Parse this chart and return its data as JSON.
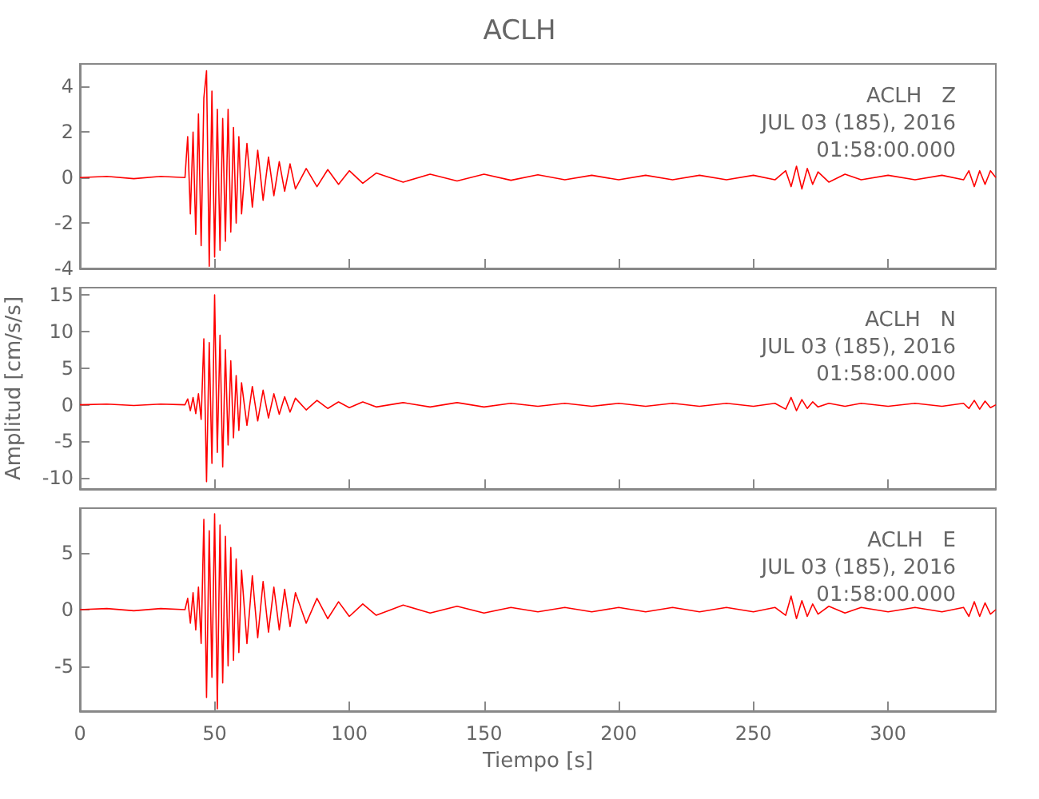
{
  "chart_data": [
    {
      "type": "line",
      "title": "ACLH",
      "color": "#ff0000",
      "xlim": [
        0,
        340
      ],
      "xticks": [
        0,
        50,
        100,
        150,
        200,
        250,
        300
      ],
      "ylim": [
        -4,
        5
      ],
      "yticks": [
        -4,
        -2,
        0,
        2,
        4
      ],
      "tick_labels": "y",
      "grid": false,
      "annotations": [
        "ACLH   Z",
        "JUL 03 (185), 2016",
        "01:58:00.000"
      ],
      "x": [
        0,
        10,
        20,
        30,
        39,
        40,
        41,
        42,
        43,
        44,
        45,
        46,
        47,
        48,
        49,
        50,
        51,
        52,
        53,
        54,
        55,
        56,
        57,
        58,
        59,
        60,
        62,
        64,
        66,
        68,
        70,
        72,
        74,
        76,
        78,
        80,
        84,
        88,
        92,
        96,
        100,
        105,
        110,
        120,
        130,
        140,
        150,
        160,
        170,
        180,
        190,
        200,
        210,
        220,
        230,
        240,
        250,
        258,
        262,
        264,
        266,
        268,
        270,
        272,
        274,
        278,
        284,
        290,
        300,
        310,
        320,
        328,
        330,
        332,
        334,
        336,
        338,
        340
      ],
      "values": [
        0,
        0.05,
        -0.05,
        0.05,
        0,
        1.8,
        -1.6,
        2.0,
        -2.5,
        2.8,
        -3.0,
        3.5,
        4.7,
        -3.9,
        3.8,
        -3.5,
        3.0,
        -3.2,
        2.6,
        -2.8,
        3.0,
        -2.4,
        2.2,
        -2.0,
        1.8,
        -1.6,
        1.5,
        -1.3,
        1.2,
        -1.0,
        0.9,
        -0.8,
        0.7,
        -0.6,
        0.6,
        -0.5,
        0.4,
        -0.4,
        0.35,
        -0.3,
        0.3,
        -0.25,
        0.2,
        -0.2,
        0.15,
        -0.15,
        0.15,
        -0.12,
        0.12,
        -0.1,
        0.1,
        -0.1,
        0.1,
        -0.1,
        0.1,
        -0.1,
        0.1,
        -0.1,
        0.3,
        -0.4,
        0.5,
        -0.5,
        0.4,
        -0.3,
        0.25,
        -0.2,
        0.15,
        -0.1,
        0.1,
        -0.1,
        0.1,
        -0.1,
        0.3,
        -0.4,
        0.3,
        -0.3,
        0.3,
        0
      ]
    },
    {
      "type": "line",
      "ylabel": "Amplitud [cm/s/s]",
      "color": "#ff0000",
      "xlim": [
        0,
        340
      ],
      "xticks": [
        0,
        50,
        100,
        150,
        200,
        250,
        300
      ],
      "ylim": [
        -11.5,
        16
      ],
      "yticks": [
        -10,
        -5,
        0,
        5,
        10,
        15
      ],
      "tick_labels": "y",
      "grid": false,
      "annotations": [
        "ACLH   N",
        "JUL 03 (185), 2016",
        "01:58:00.000"
      ],
      "x": [
        0,
        10,
        20,
        30,
        39,
        40,
        41,
        42,
        43,
        44,
        45,
        46,
        47,
        48,
        49,
        50,
        51,
        52,
        53,
        54,
        55,
        56,
        57,
        58,
        59,
        60,
        62,
        64,
        66,
        68,
        70,
        72,
        74,
        76,
        78,
        80,
        84,
        88,
        92,
        96,
        100,
        105,
        110,
        120,
        130,
        140,
        150,
        160,
        170,
        180,
        190,
        200,
        210,
        220,
        230,
        240,
        250,
        258,
        262,
        264,
        266,
        268,
        270,
        272,
        274,
        278,
        284,
        290,
        300,
        310,
        320,
        328,
        330,
        332,
        334,
        336,
        338,
        340
      ],
      "values": [
        0,
        0.1,
        -0.1,
        0.1,
        0,
        0.8,
        -0.8,
        1.0,
        -1.2,
        1.5,
        -2.0,
        9.0,
        -10.5,
        8.5,
        -8.0,
        15.0,
        -6.5,
        9.5,
        -8.5,
        7.5,
        -5.5,
        6.0,
        -4.5,
        4.0,
        -3.5,
        3.0,
        -2.8,
        2.5,
        -2.2,
        2.0,
        -1.8,
        1.5,
        -1.3,
        1.1,
        -1.0,
        0.9,
        -0.7,
        0.6,
        -0.5,
        0.4,
        -0.4,
        0.4,
        -0.3,
        0.3,
        -0.3,
        0.3,
        -0.3,
        0.2,
        -0.2,
        0.2,
        -0.2,
        0.2,
        -0.2,
        0.2,
        -0.2,
        0.2,
        -0.2,
        0.2,
        -0.6,
        1.0,
        -0.8,
        0.7,
        -0.5,
        0.4,
        -0.3,
        0.2,
        -0.2,
        0.2,
        -0.2,
        0.2,
        -0.2,
        0.2,
        -0.5,
        0.6,
        -0.6,
        0.5,
        -0.4,
        0
      ]
    },
    {
      "type": "line",
      "xlabel": "Tiempo [s]",
      "color": "#ff0000",
      "xlim": [
        0,
        340
      ],
      "xticks": [
        0,
        50,
        100,
        150,
        200,
        250,
        300
      ],
      "ylim": [
        -9,
        9
      ],
      "yticks": [
        -5,
        0,
        5
      ],
      "grid": false,
      "annotations": [
        "ACLH   E",
        "JUL 03 (185), 2016",
        "01:58:00.000"
      ],
      "x": [
        0,
        10,
        20,
        30,
        39,
        40,
        41,
        42,
        43,
        44,
        45,
        46,
        47,
        48,
        49,
        50,
        51,
        52,
        53,
        54,
        55,
        56,
        57,
        58,
        59,
        60,
        62,
        64,
        66,
        68,
        70,
        72,
        74,
        76,
        78,
        80,
        84,
        88,
        92,
        96,
        100,
        105,
        110,
        120,
        130,
        140,
        150,
        160,
        170,
        180,
        190,
        200,
        210,
        220,
        230,
        240,
        250,
        258,
        262,
        264,
        266,
        268,
        270,
        272,
        274,
        278,
        284,
        290,
        300,
        310,
        320,
        328,
        330,
        332,
        334,
        336,
        338,
        340
      ],
      "values": [
        0,
        0.1,
        -0.1,
        0.1,
        0,
        1.0,
        -1.2,
        1.5,
        -1.8,
        2.0,
        -3.0,
        8.0,
        -7.8,
        7.0,
        -6.0,
        8.5,
        -8.8,
        7.5,
        -6.5,
        6.5,
        -5.0,
        5.5,
        -4.5,
        4.5,
        -3.8,
        3.5,
        -3.0,
        3.0,
        -2.5,
        2.5,
        -2.0,
        2.0,
        -1.8,
        1.8,
        -1.5,
        1.5,
        -1.2,
        1.0,
        -0.8,
        0.7,
        -0.6,
        0.5,
        -0.5,
        0.4,
        -0.3,
        0.3,
        -0.3,
        0.2,
        -0.2,
        0.2,
        -0.2,
        0.2,
        -0.2,
        0.2,
        -0.2,
        0.2,
        -0.2,
        0.2,
        -0.5,
        1.2,
        -0.8,
        0.8,
        -0.6,
        0.5,
        -0.4,
        0.3,
        -0.3,
        0.2,
        -0.2,
        0.2,
        -0.2,
        0.2,
        -0.6,
        0.7,
        -0.6,
        0.6,
        -0.4,
        0
      ]
    }
  ]
}
